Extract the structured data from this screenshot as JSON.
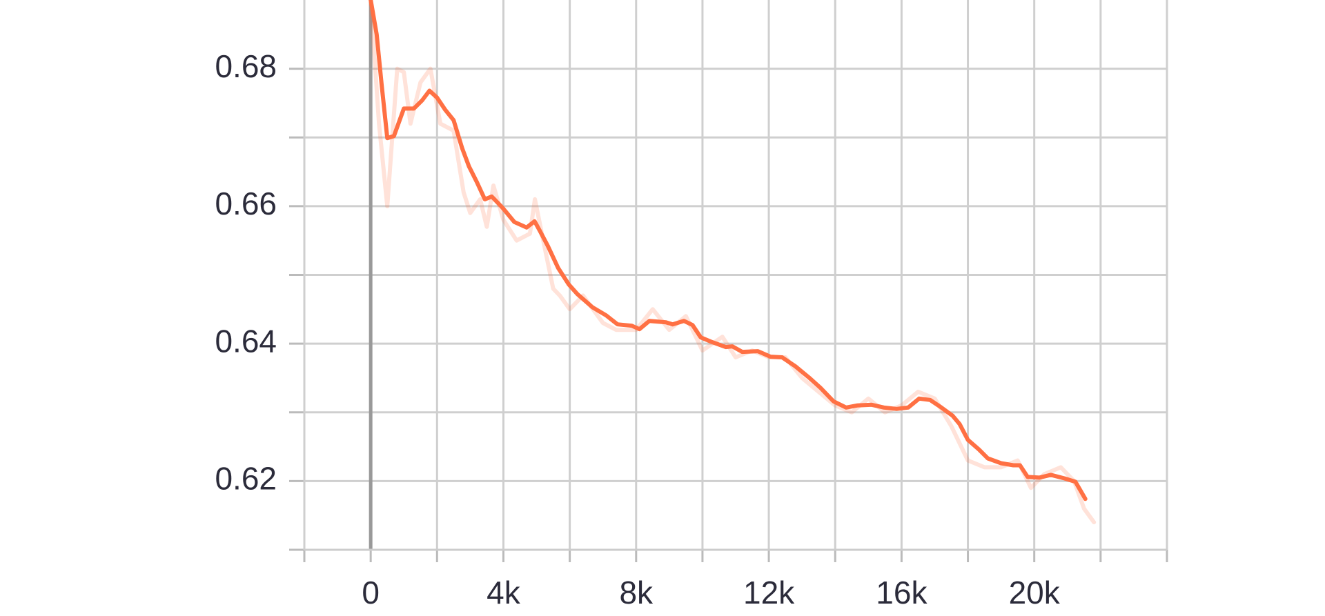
{
  "chart_data": {
    "type": "line",
    "xlim": [
      -2000,
      24000
    ],
    "xticks": [
      {
        "value": 0,
        "label": "0"
      },
      {
        "value": 4000,
        "label": "4k"
      },
      {
        "value": 8000,
        "label": "8k"
      },
      {
        "value": 12000,
        "label": "12k"
      },
      {
        "value": 16000,
        "label": "16k"
      },
      {
        "value": 20000,
        "label": "20k"
      }
    ],
    "xminor": [
      -2000,
      2000,
      6000,
      10000,
      14000,
      18000,
      22000,
      24000
    ],
    "ylim": [
      0.61,
      0.69
    ],
    "yticks": [
      0.62,
      0.64,
      0.66,
      0.68
    ],
    "yminor": [
      0.61,
      0.63,
      0.65,
      0.67
    ],
    "grid": true,
    "series": [
      {
        "color": "#ff7043",
        "opacity": 0.2,
        "width": 6,
        "x": [
          0,
          250,
          500,
          800,
          1000,
          1200,
          1500,
          1800,
          2100,
          2500,
          2800,
          3000,
          3300,
          3500,
          3700,
          4000,
          4400,
          4800,
          4950,
          5200,
          5500,
          5700,
          6000,
          6400,
          7000,
          7400,
          8000,
          8500,
          9000,
          9500,
          10000,
          10600,
          11000,
          11500,
          12000,
          12500,
          13000,
          13500,
          14000,
          14500,
          15000,
          15500,
          16000,
          16500,
          17000,
          17500,
          18000,
          18500,
          19000,
          19500,
          19900,
          20300,
          20800,
          21200,
          21500,
          21800
        ],
        "values": [
          0.69,
          0.672,
          0.66,
          0.68,
          0.6795,
          0.672,
          0.678,
          0.68,
          0.672,
          0.671,
          0.662,
          0.659,
          0.661,
          0.657,
          0.663,
          0.658,
          0.655,
          0.656,
          0.661,
          0.655,
          0.648,
          0.647,
          0.645,
          0.647,
          0.643,
          0.642,
          0.642,
          0.645,
          0.642,
          0.644,
          0.639,
          0.641,
          0.638,
          0.639,
          0.638,
          0.638,
          0.635,
          0.633,
          0.631,
          0.63,
          0.632,
          0.63,
          0.631,
          0.633,
          0.632,
          0.628,
          0.623,
          0.622,
          0.622,
          0.623,
          0.619,
          0.621,
          0.622,
          0.62,
          0.616,
          0.614
        ]
      },
      {
        "color": "#ff7043",
        "opacity": 1,
        "width": 6,
        "x": [
          0,
          180,
          330,
          500,
          700,
          1000,
          1300,
          1550,
          1770,
          2000,
          2250,
          2500,
          2760,
          2960,
          3200,
          3440,
          3650,
          3970,
          4330,
          4700,
          4940,
          5100,
          5340,
          5650,
          5970,
          6230,
          6680,
          7100,
          7440,
          7870,
          8100,
          8400,
          8900,
          9100,
          9440,
          9700,
          9950,
          10300,
          10700,
          10900,
          11200,
          11670,
          12050,
          12400,
          12800,
          13200,
          13570,
          13950,
          14330,
          14660,
          15100,
          15470,
          15850,
          16200,
          16530,
          16860,
          17200,
          17540,
          17750,
          18000,
          18330,
          18600,
          19000,
          19370,
          19570,
          19800,
          20150,
          20500,
          20900,
          21240,
          21540
        ],
        "values": [
          0.69,
          0.685,
          0.6777,
          0.6699,
          0.6702,
          0.6742,
          0.6742,
          0.6754,
          0.6768,
          0.6758,
          0.674,
          0.6725,
          0.6684,
          0.6658,
          0.6635,
          0.661,
          0.6614,
          0.6598,
          0.6577,
          0.6569,
          0.6578,
          0.6564,
          0.6542,
          0.651,
          0.6486,
          0.6472,
          0.6453,
          0.6441,
          0.6428,
          0.6426,
          0.6421,
          0.6433,
          0.6431,
          0.6428,
          0.6433,
          0.6427,
          0.6409,
          0.6402,
          0.6395,
          0.6396,
          0.6388,
          0.6389,
          0.6381,
          0.638,
          0.6367,
          0.6351,
          0.6335,
          0.6316,
          0.6307,
          0.631,
          0.6311,
          0.6307,
          0.6305,
          0.6307,
          0.632,
          0.6318,
          0.6307,
          0.6295,
          0.6283,
          0.626,
          0.6246,
          0.6233,
          0.6226,
          0.6223,
          0.6223,
          0.6206,
          0.6205,
          0.6209,
          0.6204,
          0.6199,
          0.6174
        ]
      }
    ]
  }
}
